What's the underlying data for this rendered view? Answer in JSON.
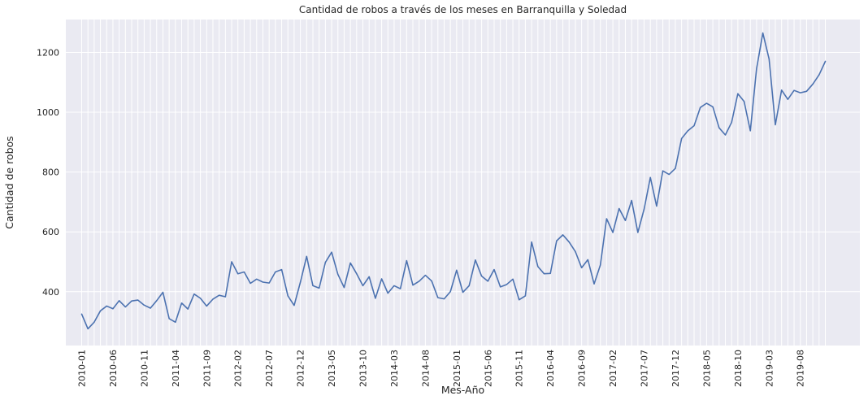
{
  "chart_data": {
    "type": "line",
    "title": "Cantidad de robos a través de los meses en Barranquilla y Soledad",
    "xlabel": "Mes-Año",
    "ylabel": "Cantidad de robos",
    "ylim": [
      220,
      1310
    ],
    "yticks": [
      400,
      600,
      800,
      1000,
      1200
    ],
    "grid": true,
    "xtick_labels": [
      "2010-01",
      "2010-06",
      "2010-11",
      "2011-04",
      "2011-09",
      "2012-02",
      "2012-07",
      "2012-12",
      "2013-05",
      "2013-10",
      "2014-03",
      "2014-08",
      "2015-01",
      "2015-06",
      "2015-11",
      "2016-04",
      "2016-09",
      "2017-02",
      "2017-07",
      "2017-12",
      "2018-05",
      "2018-10",
      "2019-03",
      "2019-08"
    ],
    "series": [
      {
        "color": "#4c72b0",
        "values": [
          325,
          276,
          298,
          336,
          352,
          343,
          370,
          349,
          369,
          372,
          355,
          345,
          370,
          398,
          310,
          298,
          362,
          342,
          392,
          378,
          352,
          375,
          388,
          383,
          500,
          460,
          466,
          428,
          442,
          432,
          429,
          466,
          474,
          386,
          354,
          432,
          518,
          420,
          412,
          498,
          532,
          458,
          414,
          496,
          460,
          420,
          450,
          378,
          443,
          395,
          420,
          410,
          504,
          422,
          435,
          455,
          436,
          380,
          376,
          400,
          472,
          398,
          420,
          506,
          452,
          435,
          474,
          416,
          424,
          442,
          373,
          386,
          566,
          484,
          460,
          461,
          570,
          590,
          566,
          534,
          480,
          507,
          426,
          489,
          644,
          598,
          678,
          638,
          705,
          598,
          676,
          782,
          686,
          804,
          792,
          812,
          912,
          938,
          955,
          1016,
          1030,
          1018,
          948,
          924,
          966,
          1062,
          1036,
          938,
          1146,
          1265,
          1178,
          958,
          1074,
          1043,
          1073,
          1065,
          1070,
          1094,
          1125,
          1170
        ]
      }
    ]
  }
}
